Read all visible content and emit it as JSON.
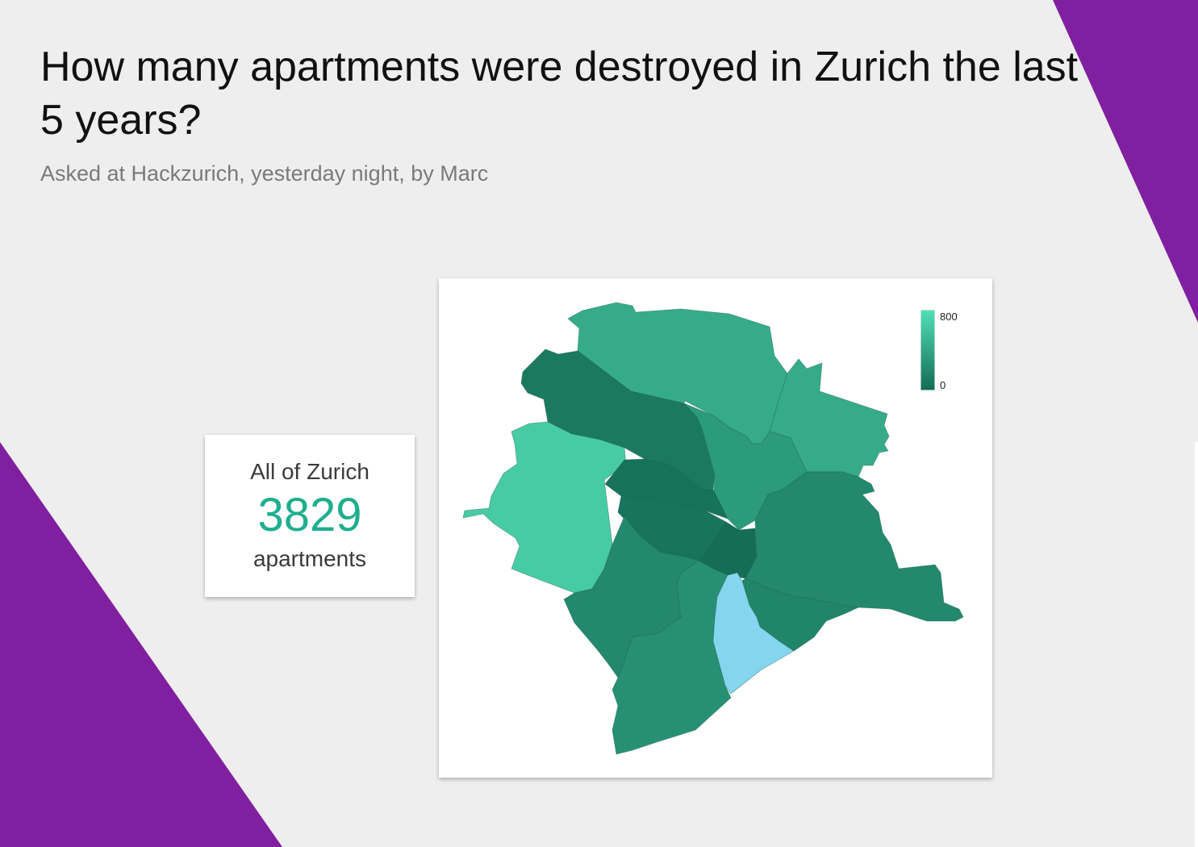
{
  "header": {
    "title": "How many apartments were destroyed in Zurich the last 5 years?",
    "subtitle": "Asked at Hackzurich, yesterday night, by Marc"
  },
  "summary": {
    "label": "All of Zurich",
    "value": "3829",
    "unit": "apartments"
  },
  "colors": {
    "background": "#eeeeee",
    "accent_purple": "#8020a0",
    "value_text": "#1fae8e",
    "scale_high": "#52e0b7",
    "scale_low": "#136b54",
    "no_data": "#84d6ef"
  },
  "legend": {
    "max_label": "800",
    "min_label": "0"
  },
  "map": {
    "type": "choropleth",
    "scale_domain": [
      0,
      800
    ],
    "district_shades": [
      {
        "name": "district-12-schwamendingen",
        "shade": 0.55
      },
      {
        "name": "district-11-oerlikon",
        "shade": 0.55
      },
      {
        "name": "district-10-wipkingen",
        "shade": 0.12
      },
      {
        "name": "district-6-unterstrass",
        "shade": 0.4
      },
      {
        "name": "district-9-altstetten",
        "shade": 0.82
      },
      {
        "name": "district-5-industriequartier",
        "shade": 0.06
      },
      {
        "name": "district-4-aussersihl",
        "shade": 0.08
      },
      {
        "name": "district-1-altstadt",
        "shade": 0.02
      },
      {
        "name": "district-7-hottingen",
        "shade": 0.25
      },
      {
        "name": "district-8-riesbach",
        "shade": 0.22
      },
      {
        "name": "district-3-wiedikon",
        "shade": 0.25
      },
      {
        "name": "district-2-enge",
        "shade": 0.32
      },
      {
        "name": "lake-zurich",
        "shade": null
      }
    ]
  }
}
